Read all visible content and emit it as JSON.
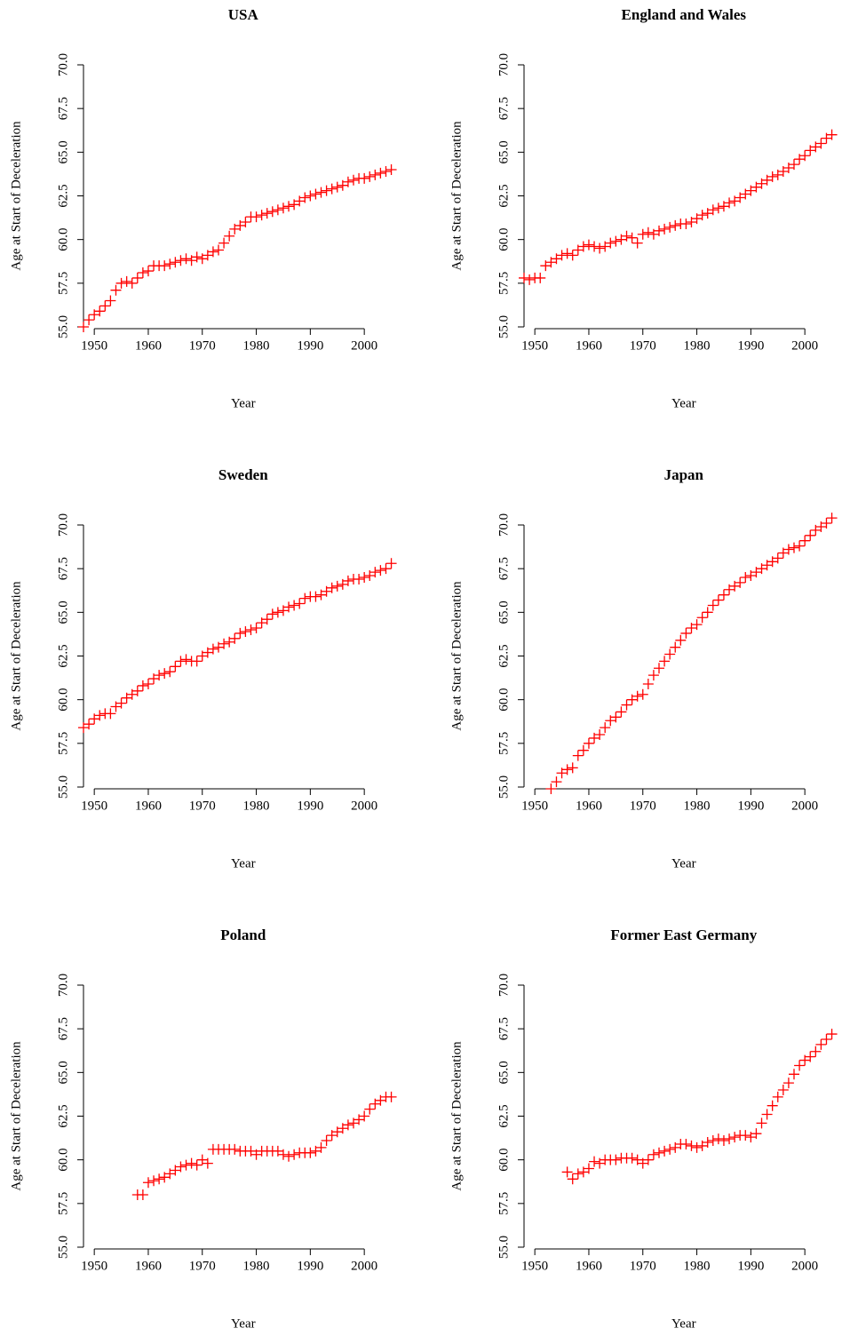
{
  "chart_data": [
    {
      "type": "scatter",
      "title": "USA",
      "x_label": "Year",
      "y_label": "Age at Start of Deceleration",
      "color": "#ff0000",
      "x": [
        1948,
        1949,
        1950,
        1951,
        1952,
        1953,
        1954,
        1955,
        1956,
        1957,
        1958,
        1959,
        1960,
        1961,
        1962,
        1963,
        1964,
        1965,
        1966,
        1967,
        1968,
        1969,
        1970,
        1971,
        1972,
        1973,
        1974,
        1975,
        1976,
        1977,
        1978,
        1979,
        1980,
        1981,
        1982,
        1983,
        1984,
        1985,
        1986,
        1987,
        1988,
        1989,
        1990,
        1991,
        1992,
        1993,
        1994,
        1995,
        1996,
        1997,
        1998,
        1999,
        2000,
        2001,
        2002,
        2003,
        2004,
        2005
      ],
      "values": [
        55.0,
        55.4,
        55.7,
        55.9,
        56.2,
        56.5,
        57.1,
        57.5,
        57.6,
        57.5,
        57.8,
        58.1,
        58.2,
        58.5,
        58.5,
        58.5,
        58.6,
        58.7,
        58.8,
        58.9,
        58.8,
        59.0,
        58.9,
        59.1,
        59.3,
        59.4,
        59.8,
        60.2,
        60.6,
        60.8,
        61.0,
        61.3,
        61.3,
        61.4,
        61.5,
        61.6,
        61.7,
        61.8,
        61.9,
        62.0,
        62.2,
        62.4,
        62.5,
        62.6,
        62.7,
        62.8,
        62.9,
        63.0,
        63.1,
        63.3,
        63.4,
        63.5,
        63.5,
        63.6,
        63.7,
        63.8,
        63.9,
        64.0
      ],
      "xlim": [
        1948,
        2005.5
      ],
      "xticks": [
        1950,
        1960,
        1970,
        1980,
        1990,
        2000
      ],
      "ylim": [
        55,
        70
      ],
      "yticks": [
        {
          "value": 55,
          "label": "55.0"
        },
        57.5,
        {
          "value": 60,
          "label": "60.0"
        },
        62.5,
        {
          "value": 65,
          "label": "65.0"
        },
        67.5,
        {
          "value": 70,
          "label": "70.0"
        }
      ]
    },
    {
      "type": "scatter",
      "title": "England and Wales",
      "x_label": "Year",
      "y_label": "Age at Start of Deceleration",
      "color": "#ff0000",
      "x": [
        1948,
        1949,
        1950,
        1951,
        1952,
        1953,
        1954,
        1955,
        1956,
        1957,
        1958,
        1959,
        1960,
        1961,
        1962,
        1963,
        1964,
        1965,
        1966,
        1967,
        1968,
        1969,
        1970,
        1971,
        1972,
        1973,
        1974,
        1975,
        1976,
        1977,
        1978,
        1979,
        1980,
        1981,
        1982,
        1983,
        1984,
        1985,
        1986,
        1987,
        1988,
        1989,
        1990,
        1991,
        1992,
        1993,
        1994,
        1995,
        1996,
        1997,
        1998,
        1999,
        2000,
        2001,
        2002,
        2003,
        2004,
        2005
      ],
      "values": [
        57.8,
        57.7,
        57.8,
        57.8,
        58.5,
        58.7,
        58.9,
        59.1,
        59.2,
        59.1,
        59.4,
        59.6,
        59.7,
        59.6,
        59.5,
        59.6,
        59.8,
        59.9,
        60.0,
        60.2,
        60.1,
        59.8,
        60.3,
        60.4,
        60.3,
        60.5,
        60.6,
        60.7,
        60.8,
        60.9,
        60.9,
        61.0,
        61.2,
        61.4,
        61.5,
        61.7,
        61.8,
        61.9,
        62.1,
        62.2,
        62.4,
        62.6,
        62.8,
        63.0,
        63.2,
        63.4,
        63.6,
        63.7,
        63.9,
        64.1,
        64.3,
        64.6,
        64.8,
        65.1,
        65.3,
        65.5,
        65.8,
        66.0
      ],
      "xlim": [
        1948,
        2005.5
      ],
      "xticks": [
        1950,
        1960,
        1970,
        1980,
        1990,
        2000
      ],
      "ylim": [
        55,
        70
      ],
      "yticks": [
        {
          "value": 55,
          "label": "55.0"
        },
        57.5,
        {
          "value": 60,
          "label": "60.0"
        },
        62.5,
        {
          "value": 65,
          "label": "65.0"
        },
        67.5,
        {
          "value": 70,
          "label": "70.0"
        }
      ]
    },
    {
      "type": "scatter",
      "title": "Sweden",
      "x_label": "Year",
      "y_label": "Age at Start of Deceleration",
      "color": "#ff0000",
      "x": [
        1948,
        1949,
        1950,
        1951,
        1952,
        1953,
        1954,
        1955,
        1956,
        1957,
        1958,
        1959,
        1960,
        1961,
        1962,
        1963,
        1964,
        1965,
        1966,
        1967,
        1968,
        1969,
        1970,
        1971,
        1972,
        1973,
        1974,
        1975,
        1976,
        1977,
        1978,
        1979,
        1980,
        1981,
        1982,
        1983,
        1984,
        1985,
        1986,
        1987,
        1988,
        1989,
        1990,
        1991,
        1992,
        1993,
        1994,
        1995,
        1996,
        1997,
        1998,
        1999,
        2000,
        2001,
        2002,
        2003,
        2004,
        2005
      ],
      "values": [
        58.4,
        58.6,
        58.9,
        59.1,
        59.2,
        59.2,
        59.6,
        59.8,
        60.1,
        60.3,
        60.5,
        60.8,
        60.9,
        61.2,
        61.4,
        61.5,
        61.6,
        61.9,
        62.2,
        62.3,
        62.2,
        62.2,
        62.5,
        62.7,
        62.9,
        63.0,
        63.2,
        63.3,
        63.5,
        63.8,
        63.9,
        64.0,
        64.1,
        64.4,
        64.6,
        64.9,
        65.0,
        65.1,
        65.3,
        65.4,
        65.5,
        65.8,
        65.9,
        65.9,
        66.0,
        66.2,
        66.4,
        66.5,
        66.6,
        66.8,
        66.9,
        66.9,
        67.0,
        67.1,
        67.3,
        67.4,
        67.5,
        67.8
      ],
      "xlim": [
        1948,
        2005.5
      ],
      "xticks": [
        1950,
        1960,
        1970,
        1980,
        1990,
        2000
      ],
      "ylim": [
        55,
        70
      ],
      "yticks": [
        {
          "value": 55,
          "label": "55.0"
        },
        57.5,
        {
          "value": 60,
          "label": "60.0"
        },
        62.5,
        {
          "value": 65,
          "label": "65.0"
        },
        67.5,
        {
          "value": 70,
          "label": "70.0"
        }
      ]
    },
    {
      "type": "scatter",
      "title": "Japan",
      "x_label": "Year",
      "y_label": "Age at Start of Deceleration",
      "color": "#ff0000",
      "x": [
        1953,
        1954,
        1955,
        1956,
        1957,
        1958,
        1959,
        1960,
        1961,
        1962,
        1963,
        1964,
        1965,
        1966,
        1967,
        1968,
        1969,
        1970,
        1971,
        1972,
        1973,
        1974,
        1975,
        1976,
        1977,
        1978,
        1979,
        1980,
        1981,
        1982,
        1983,
        1984,
        1985,
        1986,
        1987,
        1988,
        1989,
        1990,
        1991,
        1992,
        1993,
        1994,
        1995,
        1996,
        1997,
        1998,
        1999,
        2000,
        2001,
        2002,
        2003,
        2004,
        2005
      ],
      "values": [
        54.9,
        55.3,
        55.8,
        56.0,
        56.1,
        56.8,
        57.1,
        57.5,
        57.8,
        58.0,
        58.4,
        58.8,
        59.0,
        59.3,
        59.7,
        60.0,
        60.2,
        60.3,
        60.9,
        61.4,
        61.8,
        62.2,
        62.6,
        63.0,
        63.4,
        63.8,
        64.1,
        64.3,
        64.7,
        65.0,
        65.4,
        65.7,
        66.0,
        66.3,
        66.5,
        66.7,
        67.0,
        67.1,
        67.3,
        67.5,
        67.7,
        67.9,
        68.1,
        68.4,
        68.6,
        68.7,
        68.8,
        69.1,
        69.4,
        69.7,
        69.9,
        70.1,
        70.4
      ],
      "xlim": [
        1948,
        2005.5
      ],
      "xticks": [
        1950,
        1960,
        1970,
        1980,
        1990,
        2000
      ],
      "ylim": [
        55,
        70
      ],
      "yticks": [
        {
          "value": 55,
          "label": "55.0"
        },
        57.5,
        {
          "value": 60,
          "label": "60.0"
        },
        62.5,
        {
          "value": 65,
          "label": "65.0"
        },
        67.5,
        {
          "value": 70,
          "label": "70.0"
        }
      ]
    },
    {
      "type": "scatter",
      "title": "Poland",
      "x_label": "Year",
      "y_label": "Age at Start of Deceleration",
      "color": "#ff0000",
      "x": [
        1958,
        1959,
        1960,
        1961,
        1962,
        1963,
        1964,
        1965,
        1966,
        1967,
        1968,
        1969,
        1970,
        1971,
        1972,
        1973,
        1974,
        1975,
        1976,
        1977,
        1978,
        1979,
        1980,
        1981,
        1982,
        1983,
        1984,
        1985,
        1986,
        1987,
        1988,
        1989,
        1990,
        1991,
        1992,
        1993,
        1994,
        1995,
        1996,
        1997,
        1998,
        1999,
        2000,
        2001,
        2002,
        2003,
        2004,
        2005
      ],
      "values": [
        58.0,
        58.0,
        58.7,
        58.8,
        58.9,
        59.0,
        59.2,
        59.4,
        59.6,
        59.7,
        59.8,
        59.7,
        60.0,
        59.8,
        60.6,
        60.6,
        60.6,
        60.6,
        60.6,
        60.5,
        60.5,
        60.5,
        60.3,
        60.5,
        60.5,
        60.5,
        60.5,
        60.3,
        60.2,
        60.3,
        60.4,
        60.4,
        60.4,
        60.5,
        60.7,
        61.1,
        61.4,
        61.6,
        61.8,
        62.0,
        62.1,
        62.3,
        62.5,
        62.9,
        63.2,
        63.4,
        63.6,
        63.6
      ],
      "xlim": [
        1948,
        2005.5
      ],
      "xticks": [
        1950,
        1960,
        1970,
        1980,
        1990,
        2000
      ],
      "ylim": [
        55,
        70
      ],
      "yticks": [
        {
          "value": 55,
          "label": "55.0"
        },
        57.5,
        {
          "value": 60,
          "label": "60.0"
        },
        62.5,
        {
          "value": 65,
          "label": "65.0"
        },
        67.5,
        {
          "value": 70,
          "label": "70.0"
        }
      ]
    },
    {
      "type": "scatter",
      "title": "Former East Germany",
      "x_label": "Year",
      "y_label": "Age at Start of Deceleration",
      "color": "#ff0000",
      "x": [
        1956,
        1957,
        1958,
        1959,
        1960,
        1961,
        1962,
        1963,
        1964,
        1965,
        1966,
        1967,
        1968,
        1969,
        1970,
        1971,
        1972,
        1973,
        1974,
        1975,
        1976,
        1977,
        1978,
        1979,
        1980,
        1981,
        1982,
        1983,
        1984,
        1985,
        1986,
        1987,
        1988,
        1989,
        1990,
        1991,
        1992,
        1993,
        1994,
        1995,
        1996,
        1997,
        1998,
        1999,
        2000,
        2001,
        2002,
        2003,
        2004,
        2005
      ],
      "values": [
        59.3,
        58.9,
        59.2,
        59.3,
        59.5,
        59.9,
        59.8,
        60.0,
        60.0,
        60.0,
        60.1,
        60.1,
        60.1,
        60.0,
        59.8,
        60.0,
        60.3,
        60.4,
        60.5,
        60.6,
        60.7,
        60.9,
        60.9,
        60.8,
        60.7,
        60.8,
        61.0,
        61.1,
        61.2,
        61.1,
        61.2,
        61.3,
        61.4,
        61.4,
        61.3,
        61.5,
        62.1,
        62.6,
        63.1,
        63.6,
        64.0,
        64.4,
        64.9,
        65.4,
        65.7,
        65.9,
        66.2,
        66.6,
        66.9,
        67.2
      ],
      "xlim": [
        1948,
        2005.5
      ],
      "xticks": [
        1950,
        1960,
        1970,
        1980,
        1990,
        2000
      ],
      "ylim": [
        55,
        70
      ],
      "yticks": [
        {
          "value": 55,
          "label": "55.0"
        },
        57.5,
        {
          "value": 60,
          "label": "60.0"
        },
        62.5,
        {
          "value": 65,
          "label": "65.0"
        },
        67.5,
        {
          "value": 70,
          "label": "70.0"
        }
      ]
    }
  ]
}
